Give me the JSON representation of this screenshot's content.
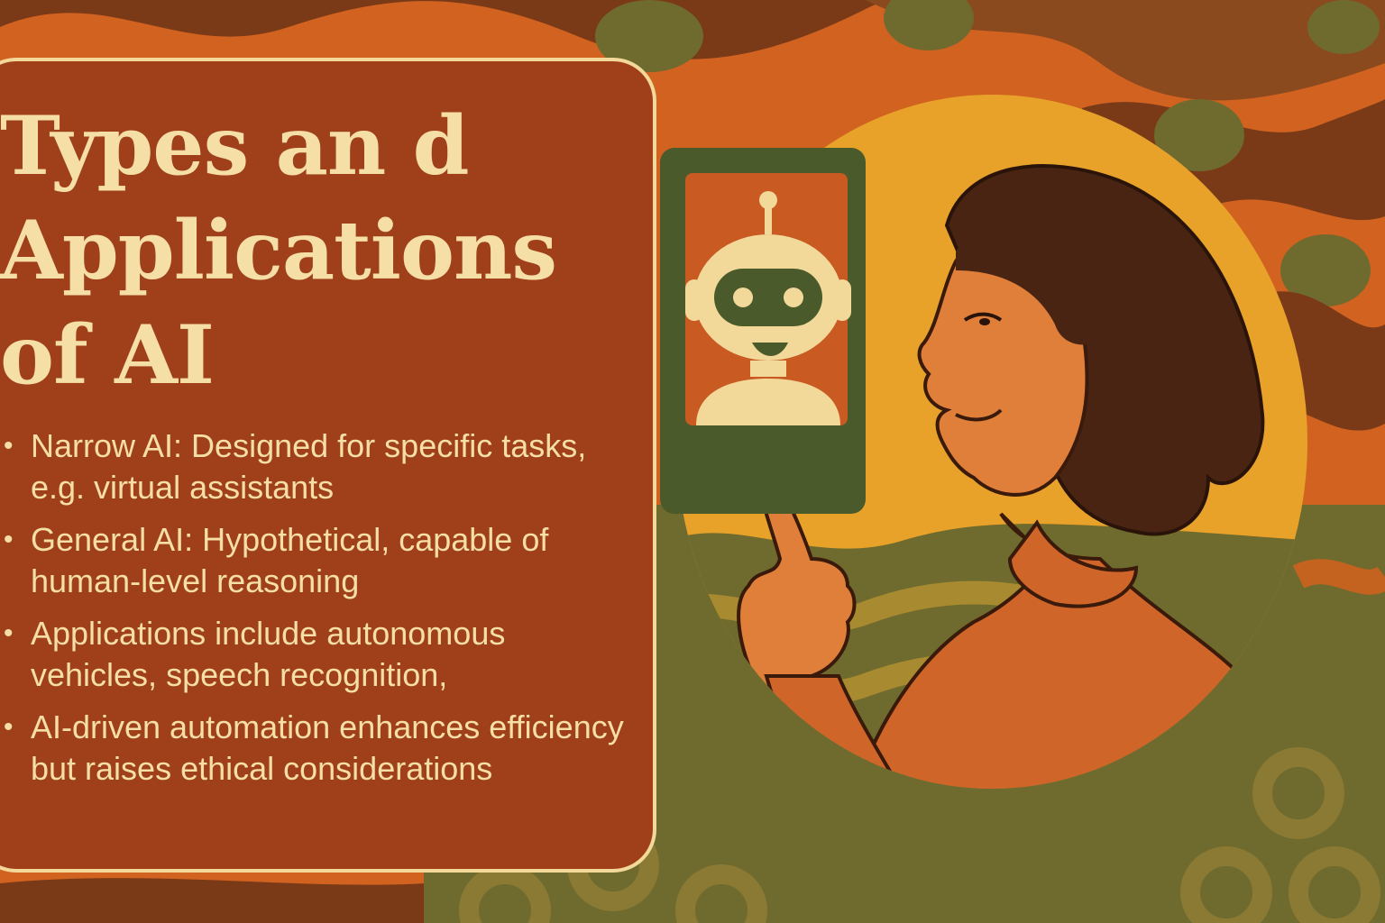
{
  "title": {
    "line1": "Types an d",
    "line2": "Applications",
    "line3": "of AI"
  },
  "bullets": [
    {
      "text": "Narrow AI: Designed for specific tasks, e.g. virtual assistants"
    },
    {
      "text": "General AI: Hypothetical, capable of human-level reasoning"
    },
    {
      "text": "Applications include autonomous vehicles, speech recognition,"
    },
    {
      "text": "AI-driven automation enhances efficiency but raises ethical considerations"
    }
  ],
  "bullet_glyph": "•",
  "colors": {
    "background_orange": "#d2621f",
    "background_brown": "#7a3a18",
    "background_olive": "#6f6a2e",
    "panel": "#a0401b",
    "cream_text": "#f6dfa6",
    "circle_gold": "#e8a22a",
    "phone_green": "#4a5a2a",
    "hair_dark": "#4a2412"
  },
  "icons": {
    "robot": "robot-icon",
    "phone": "phone-icon",
    "woman": "woman-illustration"
  }
}
